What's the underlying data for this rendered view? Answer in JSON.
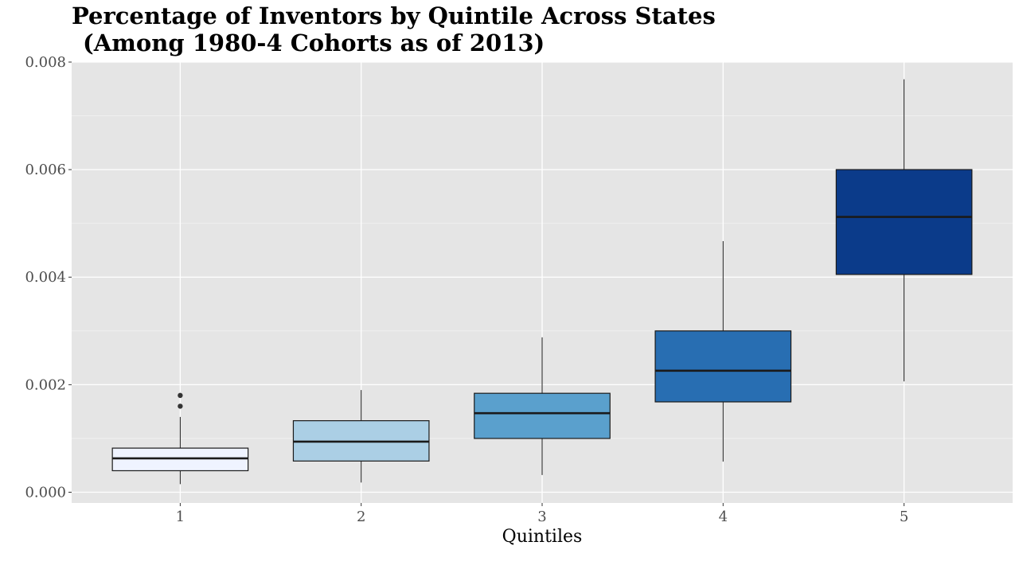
{
  "chart_data": {
    "type": "boxplot",
    "title": "Percentage of Inventors by Quintile Across States",
    "subtitle": "(Among 1980-4 Cohorts as of 2013)",
    "xlabel": "Quintiles",
    "ylabel": "",
    "categories": [
      "1",
      "2",
      "3",
      "4",
      "5"
    ],
    "ylim": [
      -0.0002,
      0.008
    ],
    "yticks": [
      "0.000",
      "0.002",
      "0.004",
      "0.006",
      "0.008"
    ],
    "ytick_values": [
      0,
      0.002,
      0.004,
      0.006,
      0.008
    ],
    "grid": true,
    "boxes": [
      {
        "category": "1",
        "whisker_low": 0.00015,
        "q1": 0.0004,
        "median": 0.00063,
        "q3": 0.00082,
        "whisker_high": 0.0014,
        "outliers": [
          0.0016,
          0.0018
        ],
        "fill": "#eff3ff"
      },
      {
        "category": "2",
        "whisker_low": 0.00018,
        "q1": 0.00058,
        "median": 0.00094,
        "q3": 0.00133,
        "whisker_high": 0.0019,
        "outliers": [],
        "fill": "#abcfe5"
      },
      {
        "category": "3",
        "whisker_low": 0.00032,
        "q1": 0.001,
        "median": 0.00147,
        "q3": 0.00184,
        "whisker_high": 0.00288,
        "outliers": [],
        "fill": "#5aa0cd"
      },
      {
        "category": "4",
        "whisker_low": 0.00057,
        "q1": 0.00168,
        "median": 0.00226,
        "q3": 0.003,
        "whisker_high": 0.00467,
        "outliers": [],
        "fill": "#286eb2"
      },
      {
        "category": "5",
        "whisker_low": 0.00206,
        "q1": 0.00405,
        "median": 0.00512,
        "q3": 0.006,
        "whisker_high": 0.00768,
        "outliers": [],
        "fill": "#0b3b8a"
      }
    ],
    "colors": {
      "panel_background": "#e5e5e5",
      "grid_major": "#ffffff",
      "grid_minor": "#f2f2f2",
      "box_outline": "#1a1a1a"
    }
  }
}
